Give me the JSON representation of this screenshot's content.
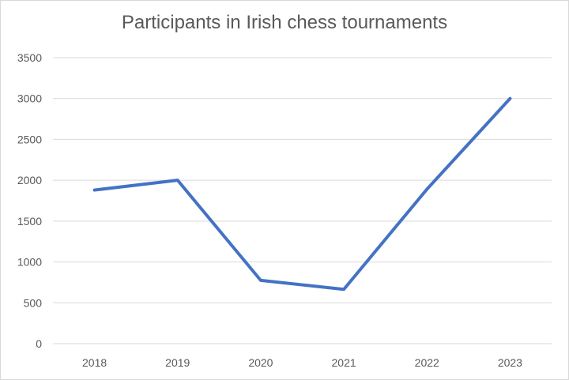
{
  "chart_data": {
    "type": "line",
    "title": "Participants in Irish chess tournaments",
    "xlabel": "",
    "ylabel": "",
    "categories": [
      "2018",
      "2019",
      "2020",
      "2021",
      "2022",
      "2023"
    ],
    "series": [
      {
        "values": [
          1880,
          2000,
          775,
          665,
          1890,
          3000
        ]
      }
    ],
    "ylim": [
      0,
      3500
    ],
    "yticks": [
      0,
      500,
      1000,
      1500,
      2000,
      2500,
      3000,
      3500
    ],
    "grid": "horizontal",
    "legend": "none",
    "colors": {
      "line": "#4472C4",
      "grid": "#d9d9d9",
      "text": "#595959"
    }
  }
}
